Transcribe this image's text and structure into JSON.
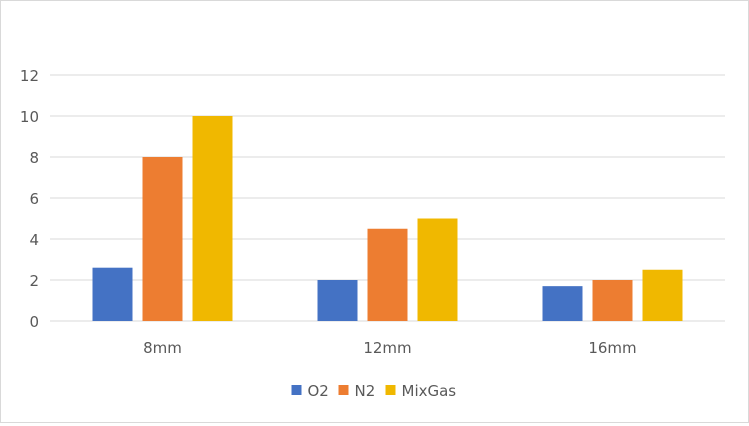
{
  "chart_data": {
    "type": "bar",
    "title": "",
    "xlabel": "",
    "ylabel": "",
    "categories": [
      "8mm",
      "12mm",
      "16mm"
    ],
    "series": [
      {
        "name": "O2",
        "values": [
          2.6,
          2.0,
          1.7
        ],
        "color": "#4472C4"
      },
      {
        "name": "N2",
        "values": [
          8,
          4.5,
          2.0
        ],
        "color": "#ED7D31"
      },
      {
        "name": "MixGas",
        "values": [
          10,
          5,
          2.5
        ],
        "color": "#F0B800"
      }
    ],
    "ylim": [
      0,
      12
    ],
    "yticks": [
      0,
      2,
      4,
      6,
      8,
      10,
      12
    ],
    "grid": true,
    "legend": "bottom"
  }
}
